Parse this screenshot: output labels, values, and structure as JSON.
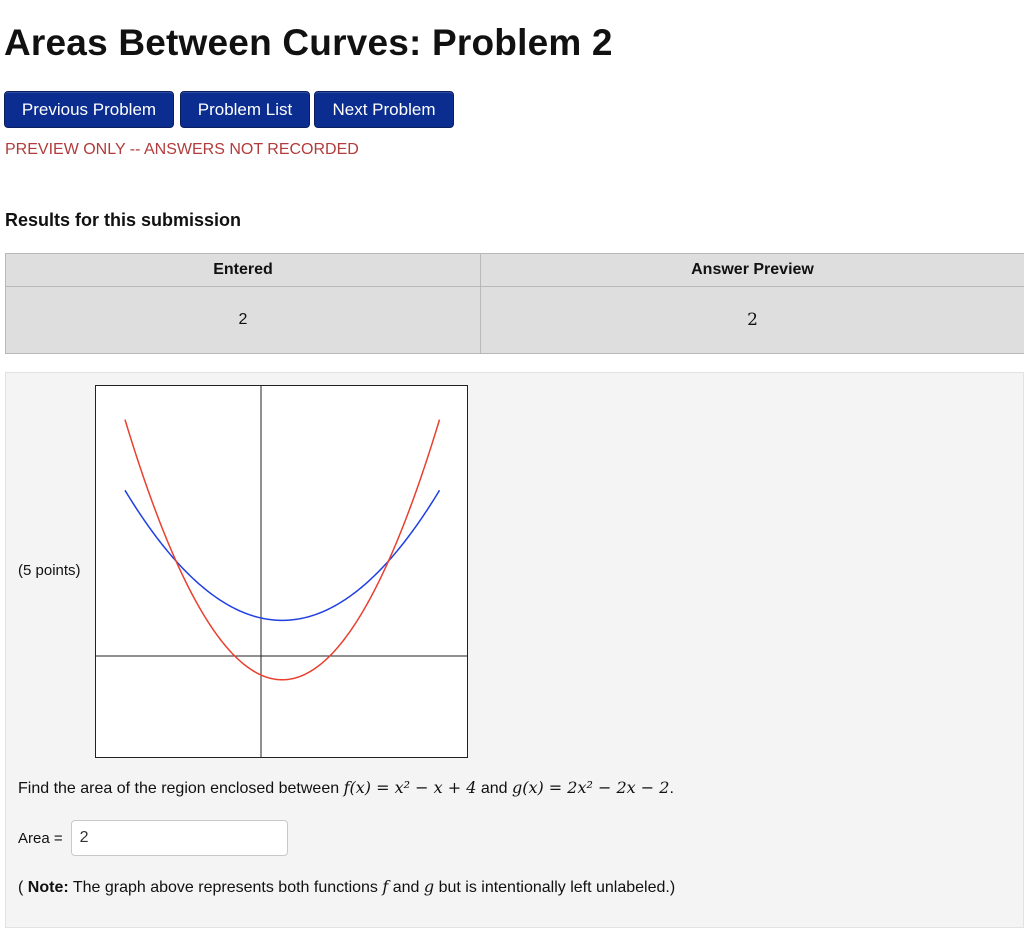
{
  "page": {
    "title": "Areas Between Curves: Problem 2",
    "preview_message": "PREVIEW ONLY -- ANSWERS NOT RECORDED"
  },
  "nav": {
    "previous_label": "Previous Problem",
    "list_label": "Problem List",
    "next_label": "Next Problem",
    "button_color": "#0a2d8f"
  },
  "results": {
    "heading": "Results for this submission",
    "columns": [
      "Entered",
      "Answer Preview"
    ],
    "rows": [
      {
        "entered": "2",
        "preview": "2"
      }
    ]
  },
  "problem": {
    "points": "(5 points)",
    "question": {
      "prefix": "Find the area of the region enclosed between ",
      "f_expr": "f(x) = x² − x + 4",
      "conjunction": " and ",
      "g_expr": "g(x) = 2x² − 2x − 2",
      "suffix": "."
    },
    "area_label": "Area =",
    "area_value": "2",
    "note": {
      "open": "( ",
      "bold": "Note:",
      "text1": " The graph above represents both functions ",
      "f": "f",
      "and": " and ",
      "g": "g",
      "text2": " but is intentionally left unlabeled.)"
    }
  },
  "graph": {
    "f_color": "#1f3fe0",
    "g_color": "#e8402f",
    "axis_color": "#222222"
  }
}
